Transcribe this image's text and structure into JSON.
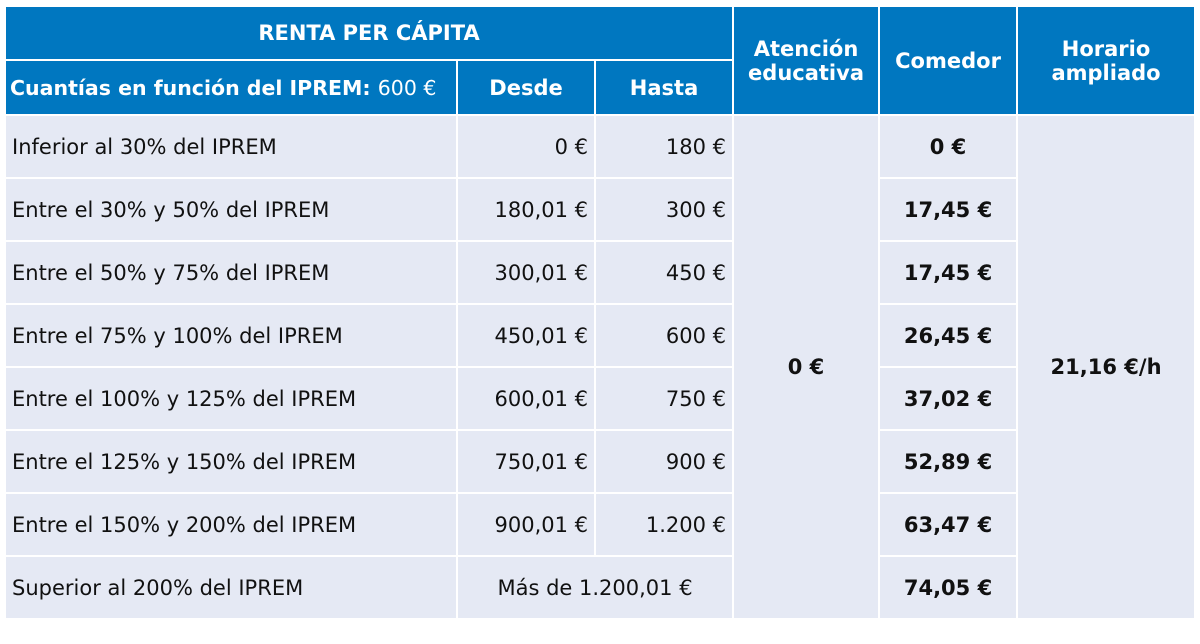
{
  "header": {
    "renta": "RENTA PER CÁPITA",
    "cuantias_label": "Cuantías en función del IPREM:",
    "cuantias_value": "600 €",
    "desde": "Desde",
    "hasta": "Hasta",
    "atencion": "Atención educativa",
    "comedor": "Comedor",
    "horario": "Horario ampliado"
  },
  "atencion_value": "0 €",
  "horario_value": "21,16 €/h",
  "rows": [
    {
      "label": "Inferior al 30% del IPREM",
      "desde": "0 €",
      "hasta": "180 €",
      "comedor": "0 €"
    },
    {
      "label": "Entre el 30% y 50% del IPREM",
      "desde": "180,01 €",
      "hasta": "300 €",
      "comedor": "17,45 €"
    },
    {
      "label": "Entre el 50% y 75% del IPREM",
      "desde": "300,01 €",
      "hasta": "450 €",
      "comedor": "17,45 €"
    },
    {
      "label": "Entre el 75% y 100% del IPREM",
      "desde": "450,01 €",
      "hasta": "600 €",
      "comedor": "26,45 €"
    },
    {
      "label": "Entre el 100% y 125% del IPREM",
      "desde": "600,01 €",
      "hasta": "750 €",
      "comedor": "37,02 €"
    },
    {
      "label": "Entre el 125% y 150% del IPREM",
      "desde": "750,01 €",
      "hasta": "900 €",
      "comedor": "52,89 €"
    },
    {
      "label": "Entre el 150% y 200% del IPREM",
      "desde": "900,01 €",
      "hasta": "1.200 €",
      "comedor": "63,47 €"
    },
    {
      "label": "Superior al 200% del IPREM",
      "range": "Más de 1.200,01 €",
      "comedor": "74,05 €"
    }
  ]
}
